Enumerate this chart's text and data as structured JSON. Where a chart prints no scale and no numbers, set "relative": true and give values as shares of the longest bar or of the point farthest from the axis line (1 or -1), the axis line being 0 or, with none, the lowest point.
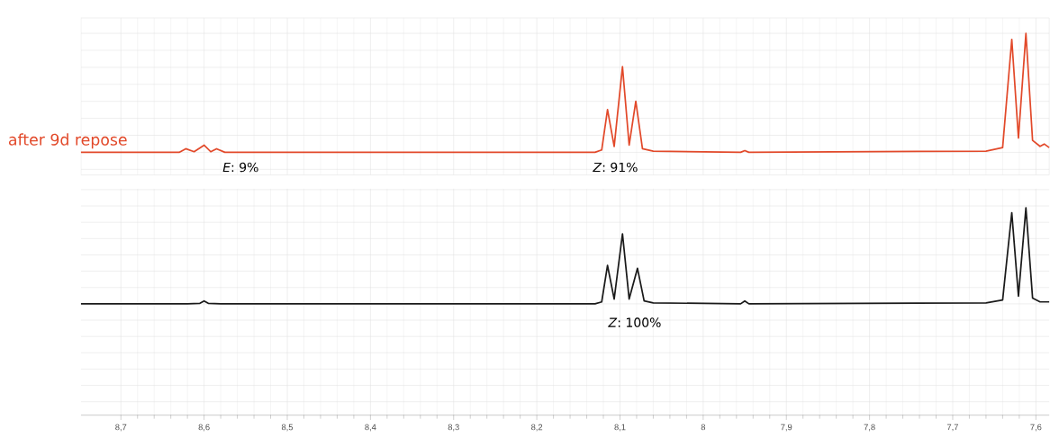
{
  "chart_data": [
    {
      "type": "line",
      "relative": true,
      "grid": true,
      "tick_labels": false,
      "xlim": [
        8.748,
        7.584
      ],
      "xticks": [
        {
          "value": 8.7,
          "label": null
        },
        {
          "value": 8.6,
          "label": null
        },
        {
          "value": 8.5,
          "label": null
        },
        {
          "value": 8.4,
          "label": null
        },
        {
          "value": 8.3,
          "label": null
        },
        {
          "value": 8.2,
          "label": null
        },
        {
          "value": 8.1,
          "label": null
        },
        {
          "value": 8,
          "label": null
        },
        {
          "value": 7.9,
          "label": null
        },
        {
          "value": 7.8,
          "label": null
        },
        {
          "value": 7.7,
          "label": null
        },
        {
          "value": 7.6,
          "label": null
        }
      ],
      "series": [
        {
          "name": "after 9d repose",
          "color": "#e2492a",
          "x": [
            8.748,
            8.63,
            8.622,
            8.612,
            8.6,
            8.592,
            8.585,
            8.575,
            8.3,
            8.13,
            8.122,
            8.115,
            8.107,
            8.097,
            8.089,
            8.081,
            8.073,
            8.06,
            7.955,
            7.95,
            7.945,
            7.66,
            7.64,
            7.629,
            7.621,
            7.612,
            7.604,
            7.595,
            7.59,
            7.584
          ],
          "values": [
            0,
            0,
            0.03,
            0.005,
            0.06,
            0.005,
            0.03,
            0,
            0,
            0,
            0.02,
            0.36,
            0.05,
            0.72,
            0.06,
            0.43,
            0.03,
            0.01,
            0,
            0.015,
            0,
            0.01,
            0.04,
            0.95,
            0.12,
            1.0,
            0.1,
            0.05,
            0.07,
            0.04
          ]
        }
      ],
      "annotations": [
        "*E*: 9%",
        "*Z*: 91%"
      ]
    },
    {
      "type": "line",
      "relative": true,
      "grid": true,
      "tick_labels": "x",
      "xlim": [
        8.748,
        7.584
      ],
      "xticks": [
        {
          "value": 8.7,
          "label": "8,7"
        },
        {
          "value": 8.6,
          "label": "8,6"
        },
        {
          "value": 8.5,
          "label": "8,5"
        },
        {
          "value": 8.4,
          "label": "8,4"
        },
        {
          "value": 8.3,
          "label": "8,3"
        },
        {
          "value": 8.2,
          "label": "8,2"
        },
        {
          "value": 8.1,
          "label": "8,1"
        },
        8,
        {
          "value": 7.9,
          "label": "7,9"
        },
        {
          "value": 7.8,
          "label": "7,8"
        },
        {
          "value": 7.7,
          "label": "7,7"
        },
        {
          "value": 7.6,
          "label": "7,6"
        }
      ],
      "series": [
        {
          "color": "#1a1a1a",
          "x": [
            8.748,
            8.62,
            8.605,
            8.6,
            8.595,
            8.58,
            8.3,
            8.13,
            8.122,
            8.115,
            8.107,
            8.097,
            8.089,
            8.079,
            8.071,
            8.06,
            7.955,
            7.95,
            7.945,
            7.66,
            7.64,
            7.629,
            7.621,
            7.612,
            7.604,
            7.595,
            7.584
          ],
          "values": [
            0,
            0,
            0.005,
            0.03,
            0.005,
            0,
            0,
            0,
            0.02,
            0.4,
            0.05,
            0.73,
            0.05,
            0.37,
            0.03,
            0.01,
            0,
            0.03,
            0,
            0.01,
            0.04,
            0.95,
            0.08,
            1.0,
            0.06,
            0.02,
            0.02
          ]
        }
      ],
      "annotations": [
        "*Z*: 100%"
      ]
    }
  ]
}
